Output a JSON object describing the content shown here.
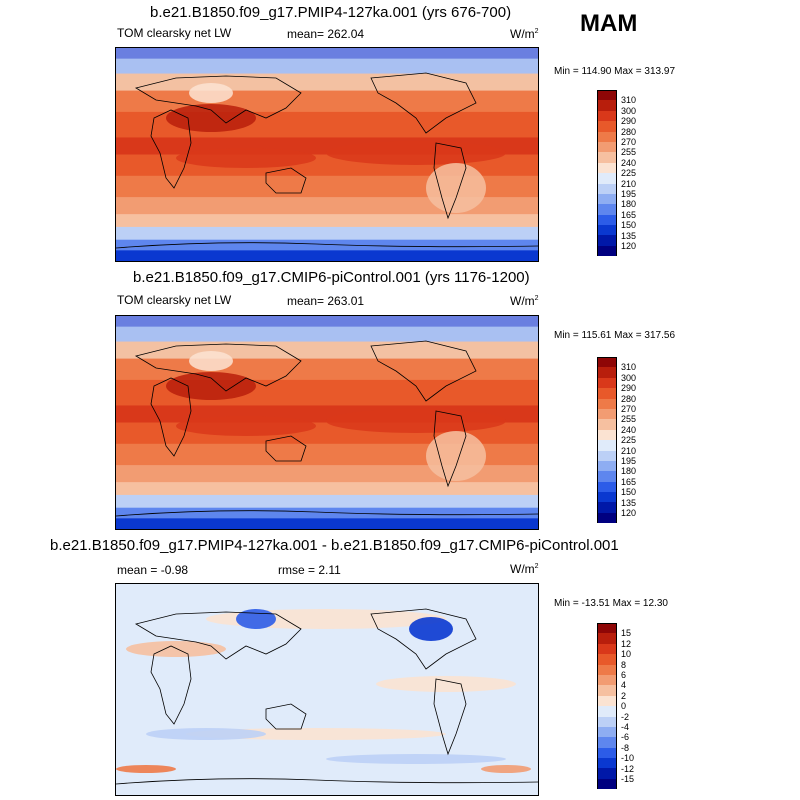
{
  "season": "MAM",
  "colors": {
    "abs_scale": [
      "#000080",
      "#0018a8",
      "#0a38d0",
      "#2c5ce8",
      "#5e86ee",
      "#8eadf2",
      "#bcd0f6",
      "#e0ebfa",
      "#fbe3d2",
      "#f6c0a0",
      "#f29c72",
      "#ee7a48",
      "#e8592a",
      "#d9381a",
      "#b81e0c",
      "#8e0606"
    ],
    "diff_scale": [
      "#000080",
      "#0018a8",
      "#0a38d0",
      "#2c5ce8",
      "#5e86ee",
      "#8eadf2",
      "#bcd0f6",
      "#e0ebfa",
      "#fbe3d2",
      "#f6c0a0",
      "#f29c72",
      "#ee7a48",
      "#e8592a",
      "#d9381a",
      "#b81e0c",
      "#8e0606"
    ]
  },
  "panels": [
    {
      "title": "b.e21.B1850.f09_g17.PMIP4-127ka.001 (yrs 676-700)",
      "left_label": "TOM clearsky net LW",
      "center_label": "mean= 262.04",
      "units": "W/m",
      "units_sup": "2",
      "minmax": "Min = 114.90 Max = 313.97",
      "ticks": [
        "310",
        "300",
        "290",
        "280",
        "270",
        "255",
        "240",
        "225",
        "210",
        "195",
        "180",
        "165",
        "150",
        "135",
        "120"
      ]
    },
    {
      "title": "b.e21.B1850.f09_g17.CMIP6-piControl.001 (yrs 1176-1200)",
      "left_label": "TOM clearsky net LW",
      "center_label": "mean= 263.01",
      "units": "W/m",
      "units_sup": "2",
      "minmax": "Min = 115.61 Max = 317.56",
      "ticks": [
        "310",
        "300",
        "290",
        "280",
        "270",
        "255",
        "240",
        "225",
        "210",
        "195",
        "180",
        "165",
        "150",
        "135",
        "120"
      ]
    },
    {
      "title": "b.e21.B1850.f09_g17.PMIP4-127ka.001 - b.e21.B1850.f09_g17.CMIP6-piControl.001",
      "left_label": "mean =  -0.98",
      "center_label": "rmse =   2.11",
      "units": "W/m",
      "units_sup": "2",
      "minmax": "Min = -13.51 Max =  12.30",
      "ticks": [
        "15",
        "12",
        "10",
        "8",
        "6",
        "4",
        "2",
        "0",
        "-2",
        "-4",
        "-6",
        "-8",
        "-10",
        "-12",
        "-15"
      ]
    }
  ]
}
